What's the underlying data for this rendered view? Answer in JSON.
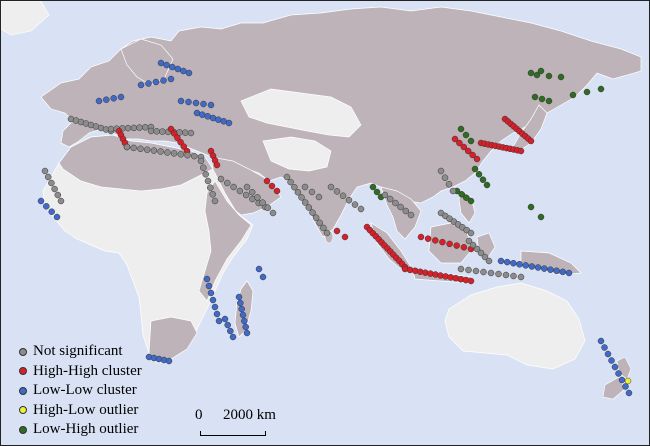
{
  "map": {
    "colors": {
      "ocean": "#d9e2f5",
      "study_land": "#bdb3b8",
      "other_land": "#eeeeee",
      "border": "#ffffff"
    },
    "legend": [
      {
        "label": "Not significant",
        "color": "#8c8c8c"
      },
      {
        "label": "High-High cluster",
        "color": "#d8202a"
      },
      {
        "label": "Low-Low cluster",
        "color": "#4169c8"
      },
      {
        "label": "High-Low outlier",
        "color": "#e8f03c"
      },
      {
        "label": "Low-High outlier",
        "color": "#2f6b22"
      }
    ],
    "scalebar": {
      "zero": "0",
      "max": "2000 km"
    }
  }
}
